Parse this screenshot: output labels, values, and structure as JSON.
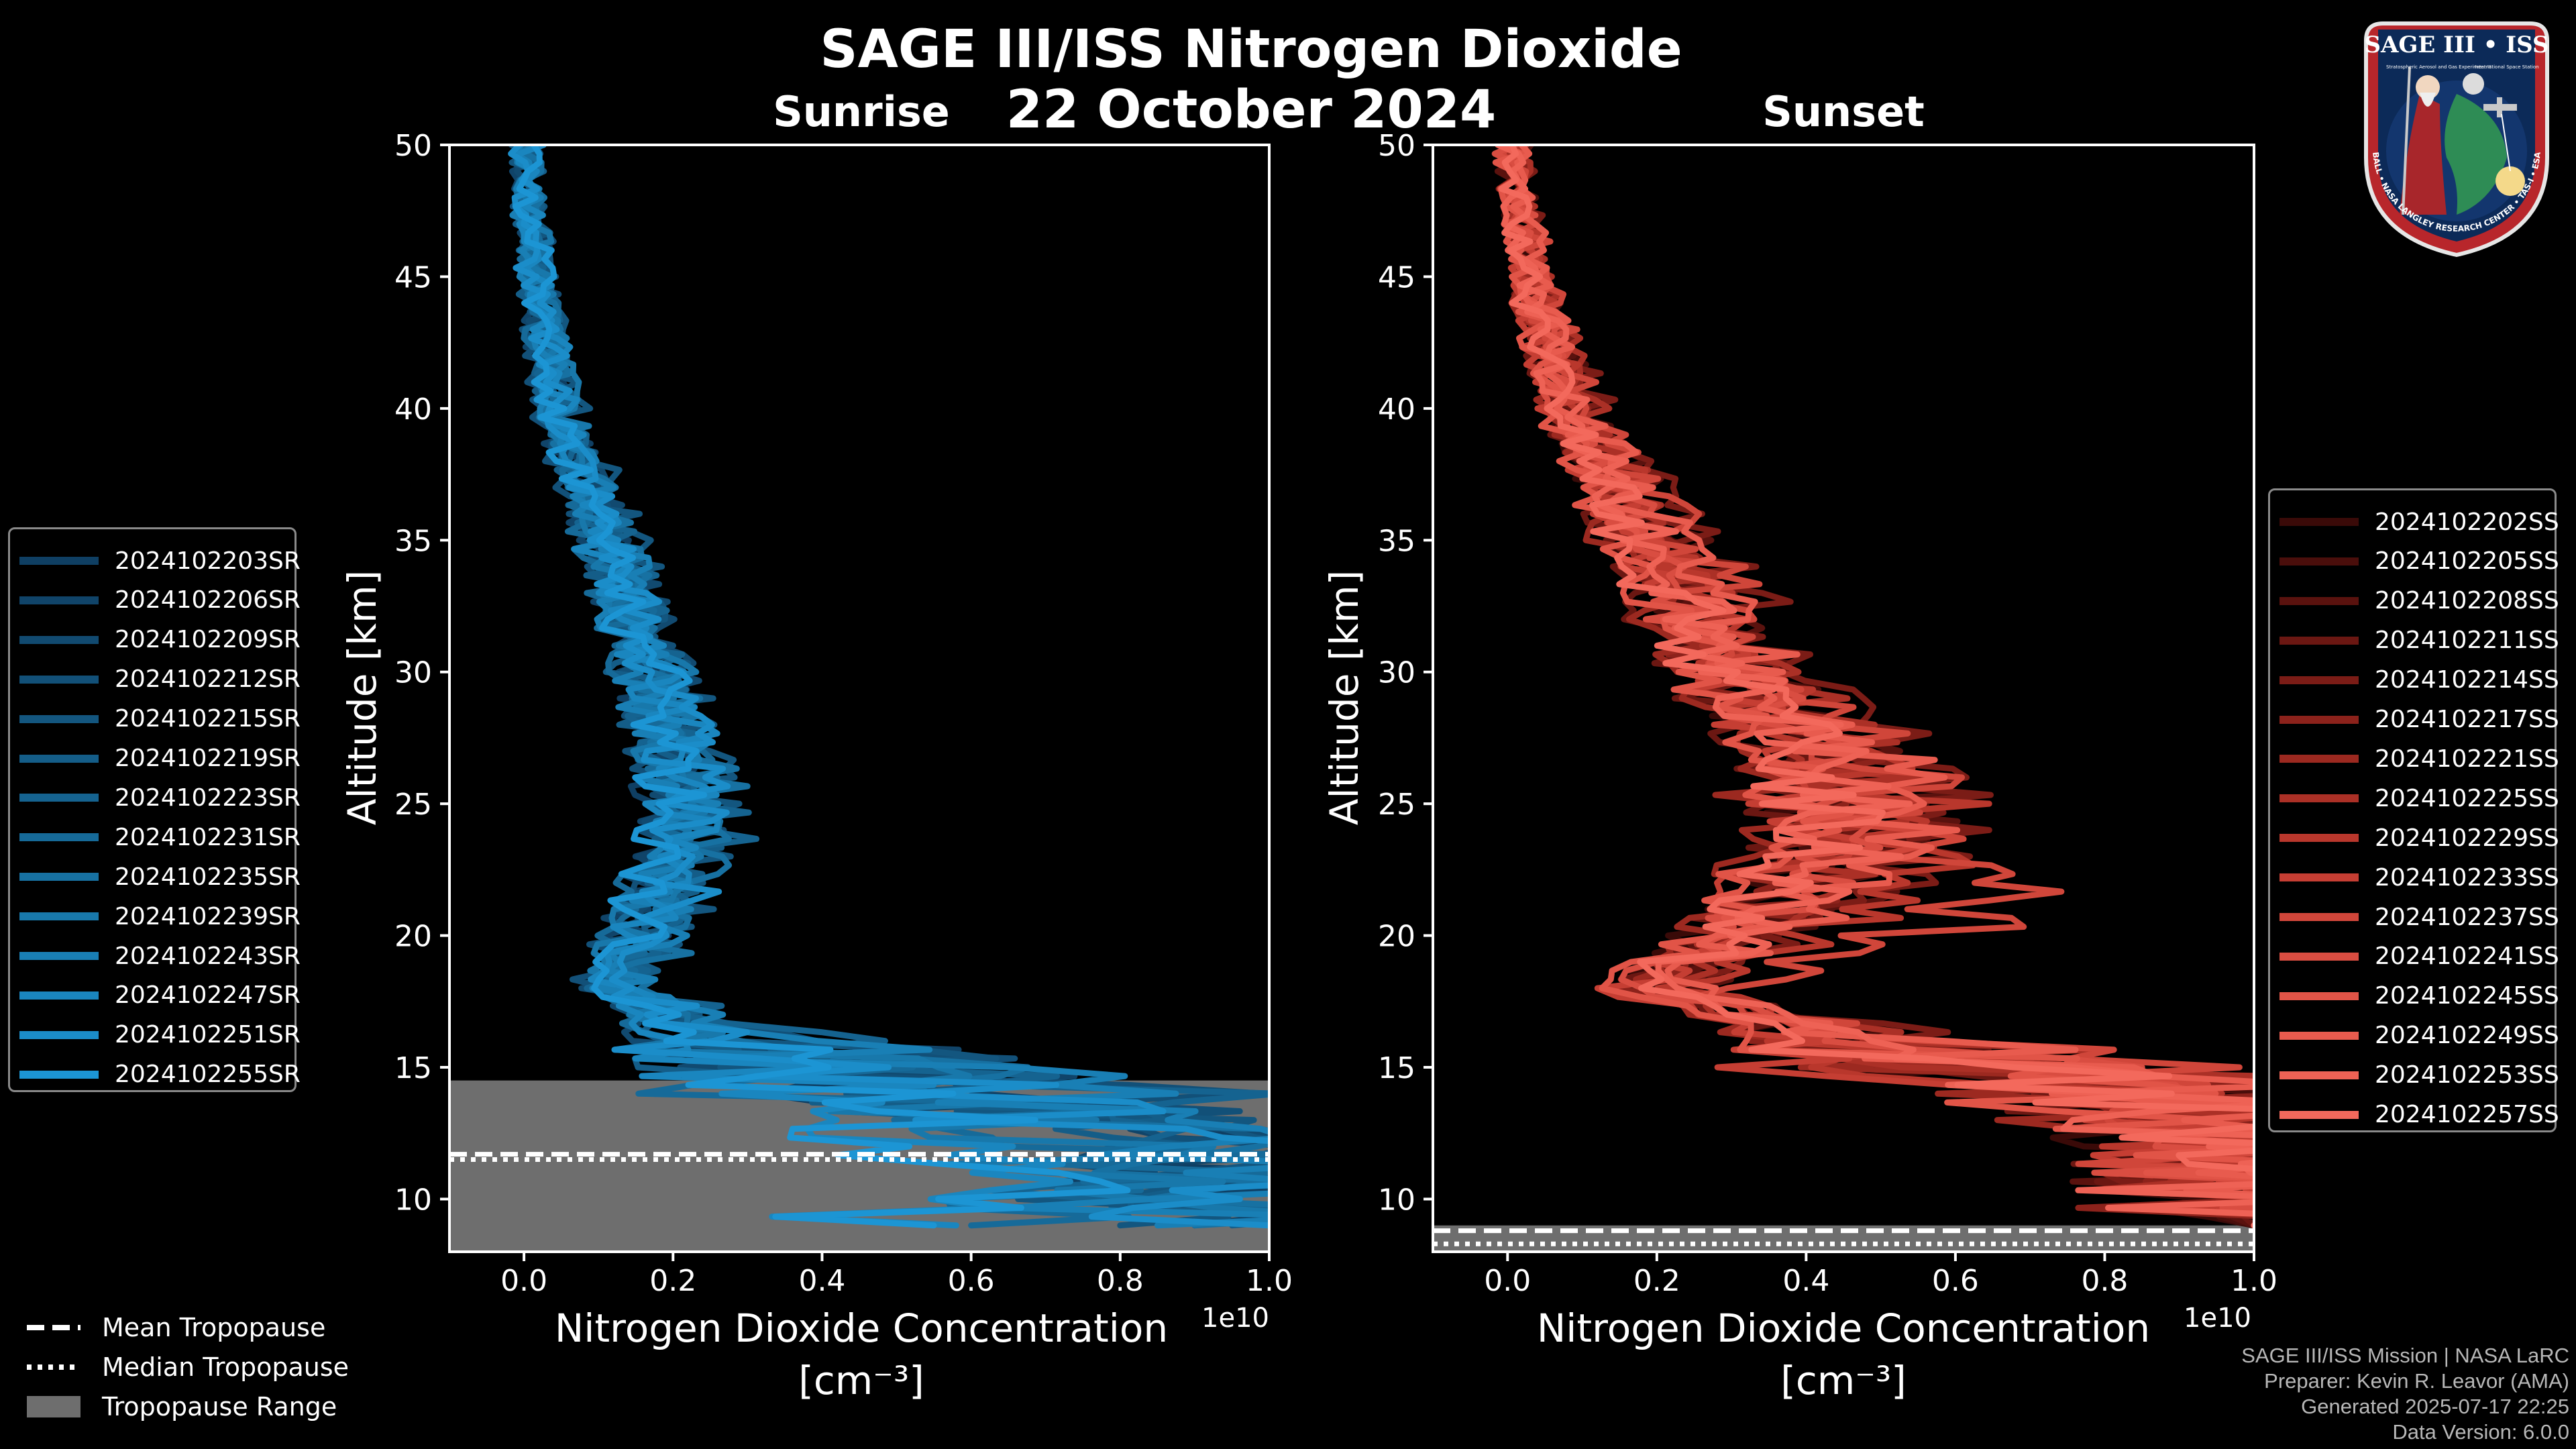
{
  "title": "SAGE III/ISS Nitrogen Dioxide",
  "date": "22 October 2024",
  "chart_data": [
    {
      "type": "line",
      "panel": "Sunrise",
      "title": "Sunrise",
      "xlabel": "Nitrogen Dioxide Concentration",
      "xlabel_units": "[cm⁻³]",
      "ylabel": "Altitude [km]",
      "xlim": [
        -0.1,
        1.0
      ],
      "ylim": [
        8,
        50
      ],
      "x_scale_label": "1e10",
      "xticks": [
        "0.0",
        "0.2",
        "0.4",
        "0.6",
        "0.8",
        "1.0"
      ],
      "yticks": [
        "10",
        "15",
        "20",
        "25",
        "30",
        "35",
        "40",
        "45",
        "50"
      ],
      "tropopause": {
        "range_km": [
          8,
          14.5
        ],
        "mean_km": 11.7,
        "median_km": 11.5
      },
      "series_color": "#1a8fd8",
      "series": [
        {
          "name": "2024102203SR",
          "color": "#0f3f63",
          "x": [
            0.0,
            0.02,
            0.05,
            0.11,
            0.17,
            0.19,
            0.2,
            0.18,
            0.12,
            0.25,
            0.55,
            0.85,
            1.0
          ],
          "y": [
            50,
            45,
            40,
            35,
            30,
            27,
            24,
            21,
            18,
            16,
            14,
            12,
            9
          ]
        },
        {
          "name": "2024102206SR",
          "color": "#104469",
          "x": [
            0.0,
            0.01,
            0.04,
            0.1,
            0.16,
            0.2,
            0.18,
            0.16,
            0.1,
            0.3,
            0.7,
            1.0,
            0.9
          ],
          "y": [
            50,
            45,
            40,
            35,
            30,
            27,
            24,
            21,
            18,
            16,
            14,
            12,
            9
          ]
        },
        {
          "name": "2024102209SR",
          "color": "#114a70",
          "x": [
            0.01,
            0.02,
            0.05,
            0.12,
            0.18,
            0.21,
            0.22,
            0.17,
            0.11,
            0.2,
            0.45,
            0.95,
            1.0
          ],
          "y": [
            50,
            45,
            40,
            35,
            30,
            27,
            24,
            21,
            18,
            16,
            14,
            12,
            9
          ]
        },
        {
          "name": "2024102212SR",
          "color": "#125078",
          "x": [
            0.0,
            0.01,
            0.03,
            0.1,
            0.17,
            0.18,
            0.21,
            0.15,
            0.09,
            0.35,
            0.8,
            1.0,
            1.0
          ],
          "y": [
            50,
            45,
            40,
            35,
            30,
            27,
            24,
            21,
            18,
            16,
            14,
            12,
            9
          ]
        },
        {
          "name": "2024102215SR",
          "color": "#13567f",
          "x": [
            0.0,
            0.02,
            0.06,
            0.13,
            0.19,
            0.22,
            0.24,
            0.2,
            0.13,
            0.28,
            0.6,
            0.9,
            0.8
          ],
          "y": [
            50,
            45,
            40,
            35,
            30,
            27,
            24,
            21,
            18,
            16,
            14,
            12,
            9
          ]
        },
        {
          "name": "2024102219SR",
          "color": "#145d88",
          "x": [
            0.01,
            0.01,
            0.04,
            0.11,
            0.15,
            0.19,
            0.23,
            0.19,
            0.14,
            0.22,
            0.5,
            1.0,
            0.95
          ],
          "y": [
            50,
            45,
            40,
            35,
            30,
            27,
            24,
            21,
            18,
            16,
            14,
            12,
            9
          ]
        },
        {
          "name": "2024102223SR",
          "color": "#156390",
          "x": [
            0.0,
            0.02,
            0.05,
            0.12,
            0.18,
            0.2,
            0.26,
            0.18,
            0.12,
            0.4,
            0.9,
            0.7,
            1.0
          ],
          "y": [
            50,
            45,
            40,
            35,
            30,
            27,
            24,
            21,
            18,
            16,
            14,
            12,
            9
          ]
        },
        {
          "name": "2024102231SR",
          "color": "#166a99",
          "x": [
            0.0,
            0.01,
            0.04,
            0.1,
            0.16,
            0.21,
            0.19,
            0.16,
            0.1,
            0.18,
            0.4,
            0.85,
            0.6
          ],
          "y": [
            50,
            45,
            40,
            35,
            30,
            27,
            24,
            21,
            18,
            16,
            14,
            12,
            9
          ]
        },
        {
          "name": "2024102235SR",
          "color": "#1771a2",
          "x": [
            0.01,
            0.02,
            0.05,
            0.13,
            0.17,
            0.23,
            0.25,
            0.21,
            0.15,
            0.3,
            0.65,
            1.0,
            0.9
          ],
          "y": [
            50,
            45,
            40,
            35,
            30,
            27,
            24,
            21,
            18,
            16,
            14,
            12,
            9
          ]
        },
        {
          "name": "2024102239SR",
          "color": "#1878ab",
          "x": [
            0.0,
            0.02,
            0.06,
            0.11,
            0.18,
            0.19,
            0.2,
            0.17,
            0.11,
            0.25,
            0.52,
            0.75,
            1.0
          ],
          "y": [
            50,
            45,
            40,
            35,
            30,
            27,
            24,
            21,
            18,
            16,
            14,
            12,
            9
          ]
        },
        {
          "name": "2024102243SR",
          "color": "#197fb5",
          "x": [
            0.0,
            0.01,
            0.04,
            0.12,
            0.16,
            0.2,
            0.22,
            0.19,
            0.13,
            0.33,
            0.7,
            1.0,
            0.85
          ],
          "y": [
            50,
            45,
            40,
            35,
            30,
            27,
            24,
            21,
            18,
            16,
            14,
            12,
            9
          ]
        },
        {
          "name": "2024102247SR",
          "color": "#1a86bf",
          "x": [
            0.01,
            0.02,
            0.05,
            0.1,
            0.17,
            0.22,
            0.21,
            0.18,
            0.12,
            0.2,
            0.45,
            0.6,
            0.58
          ],
          "y": [
            50,
            45,
            40,
            35,
            30,
            27,
            24,
            21,
            18,
            16,
            14,
            12,
            9
          ]
        },
        {
          "name": "2024102251SR",
          "color": "#1b8dc9",
          "x": [
            0.0,
            0.01,
            0.05,
            0.12,
            0.18,
            0.21,
            0.23,
            0.2,
            0.14,
            0.27,
            0.55,
            0.95,
            1.0
          ],
          "y": [
            50,
            45,
            40,
            35,
            30,
            27,
            24,
            21,
            18,
            16,
            14,
            12,
            9
          ]
        },
        {
          "name": "2024102255SR",
          "color": "#1c95d4",
          "x": [
            0.0,
            0.02,
            0.04,
            0.11,
            0.17,
            0.2,
            0.19,
            0.16,
            0.11,
            0.24,
            0.48,
            0.58,
            0.55
          ],
          "y": [
            50,
            45,
            40,
            35,
            30,
            27,
            24,
            21,
            18,
            16,
            14,
            12,
            9
          ]
        }
      ]
    },
    {
      "type": "line",
      "panel": "Sunset",
      "title": "Sunset",
      "xlabel": "Nitrogen Dioxide Concentration",
      "xlabel_units": "[cm⁻³]",
      "ylabel": "Altitude [km]",
      "xlim": [
        -0.1,
        1.0
      ],
      "ylim": [
        8,
        50
      ],
      "x_scale_label": "1e10",
      "xticks": [
        "0.0",
        "0.2",
        "0.4",
        "0.6",
        "0.8",
        "1.0"
      ],
      "yticks": [
        "10",
        "15",
        "20",
        "25",
        "30",
        "35",
        "40",
        "45",
        "50"
      ],
      "tropopause": {
        "range_km": [
          8,
          9.0
        ],
        "mean_km": 8.8,
        "median_km": 8.3
      },
      "series_color": "#e8574a",
      "series": [
        {
          "name": "2024102202SS",
          "color": "#3a0a08",
          "x": [
            0.0,
            0.03,
            0.08,
            0.18,
            0.28,
            0.4,
            0.45,
            0.35,
            0.15,
            0.4,
            0.85,
            1.0,
            1.0
          ],
          "y": [
            50,
            45,
            40,
            35,
            30,
            27,
            24,
            21,
            18,
            16,
            14,
            12,
            9
          ]
        },
        {
          "name": "2024102205SS",
          "color": "#4a0e0b",
          "x": [
            0.01,
            0.04,
            0.1,
            0.2,
            0.32,
            0.45,
            0.5,
            0.38,
            0.2,
            0.5,
            0.95,
            1.0,
            1.0
          ],
          "y": [
            50,
            45,
            40,
            35,
            30,
            27,
            24,
            21,
            18,
            16,
            14,
            12,
            9
          ]
        },
        {
          "name": "2024102208SS",
          "color": "#5a120e",
          "x": [
            0.0,
            0.03,
            0.09,
            0.22,
            0.35,
            0.48,
            0.52,
            0.4,
            0.22,
            0.45,
            1.0,
            1.0,
            1.0
          ],
          "y": [
            50,
            45,
            40,
            35,
            30,
            27,
            24,
            21,
            18,
            16,
            14,
            12,
            9
          ]
        },
        {
          "name": "2024102211SS",
          "color": "#6b1712",
          "x": [
            0.0,
            0.02,
            0.07,
            0.16,
            0.25,
            0.38,
            0.42,
            0.33,
            0.18,
            0.38,
            0.8,
            1.0,
            1.0
          ],
          "y": [
            50,
            45,
            40,
            35,
            30,
            27,
            24,
            21,
            18,
            16,
            14,
            12,
            9
          ]
        },
        {
          "name": "2024102214SS",
          "color": "#7b1c16",
          "x": [
            0.01,
            0.04,
            0.11,
            0.24,
            0.38,
            0.52,
            0.55,
            0.45,
            0.25,
            0.55,
            1.0,
            1.0,
            1.0
          ],
          "y": [
            50,
            45,
            40,
            35,
            30,
            27,
            24,
            21,
            18,
            16,
            14,
            12,
            9
          ]
        },
        {
          "name": "2024102217SS",
          "color": "#8c221b",
          "x": [
            0.0,
            0.03,
            0.08,
            0.19,
            0.3,
            0.42,
            0.47,
            0.36,
            0.19,
            0.42,
            0.9,
            1.0,
            1.0
          ],
          "y": [
            50,
            45,
            40,
            35,
            30,
            27,
            24,
            21,
            18,
            16,
            14,
            12,
            9
          ]
        },
        {
          "name": "2024102221SS",
          "color": "#9c2920",
          "x": [
            0.0,
            0.02,
            0.06,
            0.15,
            0.24,
            0.33,
            0.38,
            0.3,
            0.16,
            0.35,
            0.75,
            1.0,
            1.0
          ],
          "y": [
            50,
            45,
            40,
            35,
            30,
            27,
            24,
            21,
            18,
            16,
            14,
            12,
            9
          ]
        },
        {
          "name": "2024102225SS",
          "color": "#ab3026",
          "x": [
            0.01,
            0.04,
            0.1,
            0.21,
            0.33,
            0.46,
            0.49,
            0.39,
            0.21,
            0.48,
            0.95,
            1.0,
            1.0
          ],
          "y": [
            50,
            45,
            40,
            35,
            30,
            27,
            24,
            21,
            18,
            16,
            14,
            12,
            9
          ]
        },
        {
          "name": "2024102229SS",
          "color": "#b9372c",
          "x": [
            0.0,
            0.03,
            0.09,
            0.2,
            0.31,
            0.44,
            0.58,
            0.46,
            0.23,
            0.4,
            0.85,
            1.0,
            1.0
          ],
          "y": [
            50,
            45,
            40,
            35,
            30,
            27,
            24,
            21,
            18,
            16,
            14,
            12,
            9
          ]
        },
        {
          "name": "2024102233SS",
          "color": "#c53e33",
          "x": [
            0.0,
            0.02,
            0.07,
            0.17,
            0.27,
            0.36,
            0.4,
            0.32,
            0.17,
            0.36,
            0.7,
            1.0,
            1.0
          ],
          "y": [
            50,
            45,
            40,
            35,
            30,
            27,
            24,
            21,
            18,
            16,
            14,
            12,
            9
          ]
        },
        {
          "name": "2024102237SS",
          "color": "#d0463a",
          "x": [
            0.01,
            0.04,
            0.1,
            0.23,
            0.36,
            0.5,
            0.53,
            0.66,
            0.26,
            0.52,
            1.0,
            1.0,
            1.0
          ],
          "y": [
            50,
            45,
            40,
            35,
            30,
            27,
            24,
            21,
            18,
            16,
            14,
            12,
            9
          ]
        },
        {
          "name": "2024102241SS",
          "color": "#d94d41",
          "x": [
            0.0,
            0.03,
            0.08,
            0.18,
            0.29,
            0.41,
            0.44,
            0.35,
            0.18,
            0.44,
            0.88,
            1.0,
            1.0
          ],
          "y": [
            50,
            45,
            40,
            35,
            30,
            27,
            24,
            21,
            18,
            16,
            14,
            12,
            9
          ]
        },
        {
          "name": "2024102245SS",
          "color": "#e15447",
          "x": [
            0.0,
            0.02,
            0.06,
            0.16,
            0.26,
            0.35,
            0.39,
            0.31,
            0.15,
            0.38,
            0.78,
            1.0,
            1.0
          ],
          "y": [
            50,
            45,
            40,
            35,
            30,
            27,
            24,
            21,
            18,
            16,
            14,
            12,
            9
          ]
        },
        {
          "name": "2024102249SS",
          "color": "#e85b4e",
          "x": [
            0.01,
            0.04,
            0.09,
            0.21,
            0.33,
            0.47,
            0.51,
            0.41,
            0.22,
            0.5,
            0.92,
            1.0,
            1.0
          ],
          "y": [
            50,
            45,
            40,
            35,
            30,
            27,
            24,
            21,
            18,
            16,
            14,
            12,
            9
          ]
        },
        {
          "name": "2024102253SS",
          "color": "#ee6255",
          "x": [
            0.0,
            0.03,
            0.08,
            0.19,
            0.3,
            0.43,
            0.46,
            0.37,
            0.2,
            0.46,
            0.86,
            1.0,
            1.0
          ],
          "y": [
            50,
            45,
            40,
            35,
            30,
            27,
            24,
            21,
            18,
            16,
            14,
            12,
            9
          ]
        },
        {
          "name": "2024102257SS",
          "color": "#f3695c",
          "x": [
            0.0,
            0.02,
            0.07,
            0.17,
            0.28,
            0.39,
            0.43,
            0.34,
            0.18,
            0.42,
            0.8,
            1.0,
            1.0
          ],
          "y": [
            50,
            45,
            40,
            35,
            30,
            27,
            24,
            21,
            18,
            16,
            14,
            12,
            9
          ]
        }
      ]
    }
  ],
  "tropopause_legend": {
    "mean": "Mean Tropopause",
    "median": "Median Tropopause",
    "range": "Tropopause Range",
    "range_color": "#6e6e6e"
  },
  "logo": {
    "top_text": "SAGE III • ISS",
    "ring_text": "BALL • NASA LANGLEY RESEARCH CENTER • TAS-I • ESA",
    "sub_text_left": "Stratospheric Aerosol and Gas Experiment III",
    "sub_text_right": "International Space Station"
  },
  "footer": {
    "line1": "SAGE III/ISS Mission | NASA LaRC",
    "line2": "Preparer: Kevin R. Leavor (AMA)",
    "line3": "Generated 2025-07-17 22:25",
    "line4": "Data Version: 6.0.0"
  }
}
